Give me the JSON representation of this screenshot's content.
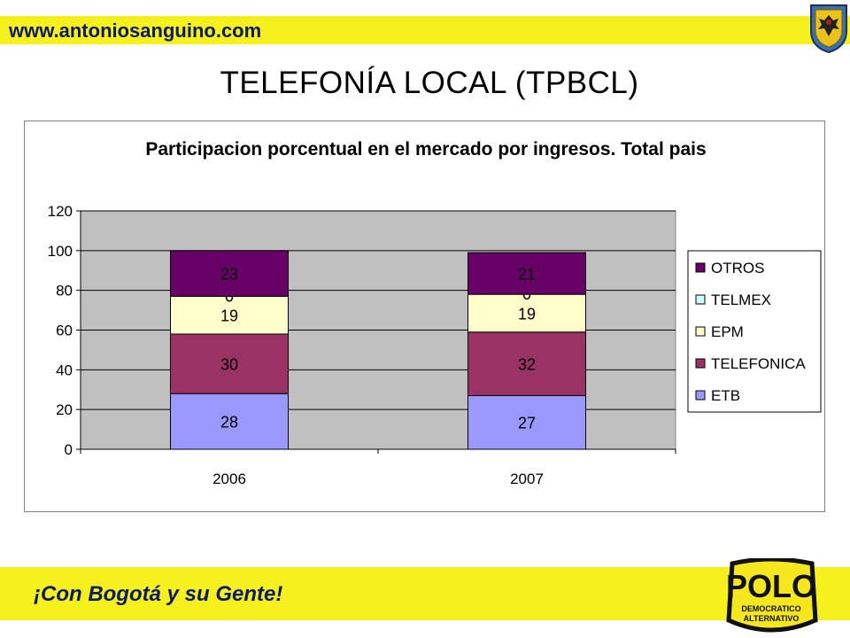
{
  "header": {
    "site_url": "www.antoniosanguino.com"
  },
  "page_title": "TELEFONÍA LOCAL (TPBCL)",
  "footer": {
    "slogan": "¡Con Bogotá y su Gente!",
    "logo_text_main": "POLO",
    "logo_text_sub1": "DEMOCRATICO",
    "logo_text_sub2": "ALTERNATIVO"
  },
  "colors": {
    "band_yellow": "#f5f01e",
    "url_text": "#0c1a6b",
    "plot_area": "#c0c0c0"
  },
  "chart_data": {
    "type": "bar",
    "stacked": true,
    "title": "Participacion porcentual en el mercado por ingresos. Total pais",
    "categories": [
      "2006",
      "2007"
    ],
    "ylim": [
      0,
      120
    ],
    "yticks": [
      0,
      20,
      40,
      60,
      80,
      100,
      120
    ],
    "grid": true,
    "legend_position": "right",
    "series": [
      {
        "name": "ETB",
        "values": [
          28,
          27
        ],
        "labels": [
          "28",
          "27"
        ],
        "color": "#9999ff"
      },
      {
        "name": "TELEFONICA",
        "values": [
          30,
          32
        ],
        "labels": [
          "30",
          "32"
        ],
        "color": "#993366"
      },
      {
        "name": "EPM",
        "values": [
          19,
          19
        ],
        "labels": [
          "19",
          "19"
        ],
        "color": "#ffffcc"
      },
      {
        "name": "TELMEX",
        "values": [
          0,
          0
        ],
        "labels": [
          "0",
          "0"
        ],
        "color": "#ccffff"
      },
      {
        "name": "OTROS",
        "values": [
          23,
          21
        ],
        "labels": [
          "23",
          "21"
        ],
        "color": "#660066"
      }
    ]
  }
}
